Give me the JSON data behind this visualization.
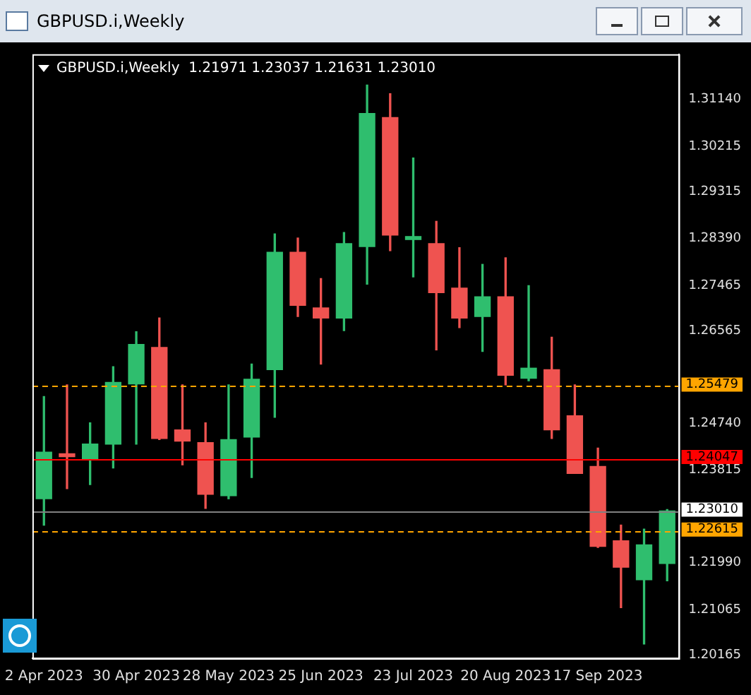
{
  "chart_data": {
    "type": "candlestick",
    "title": "GBPUSD.i,Weekly",
    "subtitle": "GBPUSD.i,Weekly  1.21971 1.23037 1.21631 1.23010",
    "categories": [
      "2 Apr 2023",
      null,
      null,
      null,
      "30 Apr 2023",
      null,
      null,
      null,
      "28 May 2023",
      null,
      null,
      null,
      "25 Jun 2023",
      null,
      null,
      null,
      "23 Jul 2023",
      null,
      null,
      null,
      "20 Aug 2023",
      null,
      null,
      null,
      "17 Sep 2023",
      null,
      null,
      null
    ],
    "ohlc": [
      [
        1.2325,
        1.2527,
        1.2273,
        1.2417
      ],
      [
        1.2414,
        1.255,
        1.2345,
        1.2408
      ],
      [
        1.2403,
        1.2475,
        1.2353,
        1.2433
      ],
      [
        1.2433,
        1.2586,
        1.2386,
        1.2555
      ],
      [
        1.2552,
        1.2655,
        1.2433,
        1.263
      ],
      [
        1.2624,
        1.2682,
        1.2442,
        1.2444
      ],
      [
        1.2461,
        1.255,
        1.2392,
        1.2439
      ],
      [
        1.2436,
        1.2475,
        1.2306,
        1.2334
      ],
      [
        1.2331,
        1.255,
        1.2325,
        1.2442
      ],
      [
        1.2447,
        1.2591,
        1.2367,
        1.2561
      ],
      [
        1.258,
        1.2848,
        1.2486,
        1.2812
      ],
      [
        1.2812,
        1.284,
        1.2685,
        1.2707
      ],
      [
        1.2702,
        1.276,
        1.2591,
        1.2682
      ],
      [
        1.2682,
        1.2851,
        1.2657,
        1.2829
      ],
      [
        1.2823,
        1.3142,
        1.2749,
        1.3086
      ],
      [
        1.3078,
        1.3125,
        1.2815,
        1.2846
      ],
      [
        1.2837,
        1.2998,
        1.2763,
        1.2843
      ],
      [
        1.2829,
        1.2873,
        1.2619,
        1.2732
      ],
      [
        1.2741,
        1.2821,
        1.2663,
        1.2682
      ],
      [
        1.2685,
        1.2788,
        1.2616,
        1.2724
      ],
      [
        1.2724,
        1.2801,
        1.255,
        1.2569
      ],
      [
        1.2563,
        1.2746,
        1.2558,
        1.2583
      ],
      [
        1.258,
        1.2644,
        1.2444,
        1.2461
      ],
      [
        1.2489,
        1.255,
        1.2375,
        1.2375
      ],
      [
        1.2389,
        1.2425,
        1.2229,
        1.2231
      ],
      [
        1.2242,
        1.2273,
        1.211,
        1.219
      ],
      [
        1.2165,
        1.2265,
        1.2038,
        1.2234
      ],
      [
        1.21971,
        1.23037,
        1.21631,
        1.2301
      ]
    ],
    "colors": [
      "#2fbe6e",
      "#ef5350",
      "#2fbe6e",
      "#2fbe6e",
      "#2fbe6e",
      "#ef5350",
      "#ef5350",
      "#ef5350",
      "#2fbe6e",
      "#2fbe6e",
      "#2fbe6e",
      "#ef5350",
      "#ef5350",
      "#2fbe6e",
      "#2fbe6e",
      "#ef5350",
      "#2fbe6e",
      "#ef5350",
      "#ef5350",
      "#2fbe6e",
      "#ef5350",
      "#2fbe6e",
      "#ef5350",
      "#ef5350",
      "#ef5350",
      "#ef5350",
      "#2fbe6e",
      "#2fbe6e"
    ],
    "ylim": [
      1.201,
      1.3203
    ],
    "yticks": [
      {
        "value": 1.3114,
        "label": "1.31140"
      },
      {
        "value": 1.30215,
        "label": "1.30215"
      },
      {
        "value": 1.29315,
        "label": "1.29315"
      },
      {
        "value": 1.2839,
        "label": "1.28390"
      },
      {
        "value": 1.27465,
        "label": "1.27465"
      },
      {
        "value": 1.26565,
        "label": "1.26565"
      },
      {
        "value": 1.2474,
        "label": "1.24740"
      },
      {
        "value": 1.23815,
        "label": "1.23815"
      },
      {
        "value": 1.2199,
        "label": "1.21990"
      },
      {
        "value": 1.21065,
        "label": "1.21065"
      },
      {
        "value": 1.20165,
        "label": "1.20165"
      }
    ],
    "ref_lines": [
      {
        "axis": "y",
        "value": 1.25479,
        "label": "1.25479",
        "color": "#ffa500",
        "line_style": "dashed"
      },
      {
        "axis": "y",
        "value": 1.24047,
        "label": "1.24047",
        "color": "#ff0000",
        "line_style": "solid"
      },
      {
        "axis": "y",
        "value": 1.2301,
        "label": "1.23010",
        "color": "#808080",
        "line_style": "solid"
      },
      {
        "axis": "y",
        "value": 1.22615,
        "label": "1.22615",
        "color": "#ffa500",
        "line_style": "dashed"
      }
    ],
    "grid": false,
    "legend": false
  }
}
